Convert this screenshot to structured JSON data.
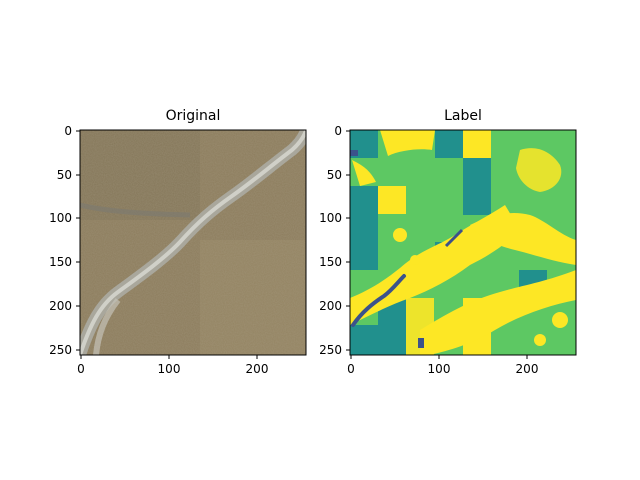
{
  "panels": [
    {
      "title": "Original",
      "kind": "image",
      "xticks": [
        "0",
        "100",
        "200"
      ],
      "yticks": [
        "0",
        "50",
        "100",
        "150",
        "200",
        "250"
      ]
    },
    {
      "title": "Label",
      "kind": "segmentation",
      "xticks": [
        "0",
        "100",
        "200"
      ],
      "yticks": [
        "0",
        "50",
        "100",
        "150",
        "200",
        "250"
      ]
    }
  ],
  "colors": {
    "label_dark": "#3b528b",
    "label_teal": "#21908d",
    "label_green": "#5dc863",
    "label_yellow": "#fde725",
    "terrain_base": "#8c7c5c",
    "stream": "#b8b8b0"
  }
}
